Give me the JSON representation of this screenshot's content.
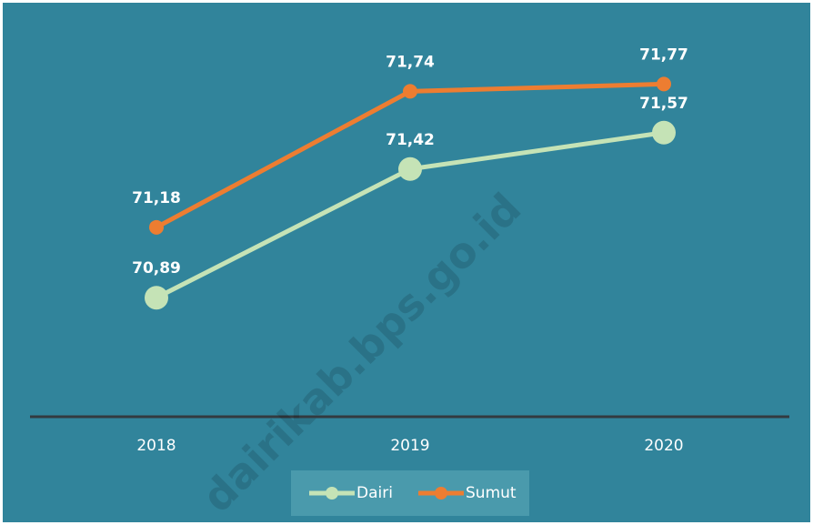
{
  "chart_data": {
    "type": "line",
    "categories": [
      "2018",
      "2019",
      "2020"
    ],
    "series": [
      {
        "name": "Dairi",
        "color": "#c5e3b6",
        "values": [
          70.89,
          71.42,
          71.57
        ],
        "value_labels": [
          "70,89",
          "71,42",
          "71,57"
        ]
      },
      {
        "name": "Sumut",
        "color": "#ed7d31",
        "values": [
          71.18,
          71.74,
          71.77
        ],
        "value_labels": [
          "71,18",
          "71,74",
          "71,77"
        ]
      }
    ],
    "ylim": [
      70.4,
      72.0
    ],
    "legend": "bottom",
    "watermark": "dairikab.bps.go.id"
  }
}
